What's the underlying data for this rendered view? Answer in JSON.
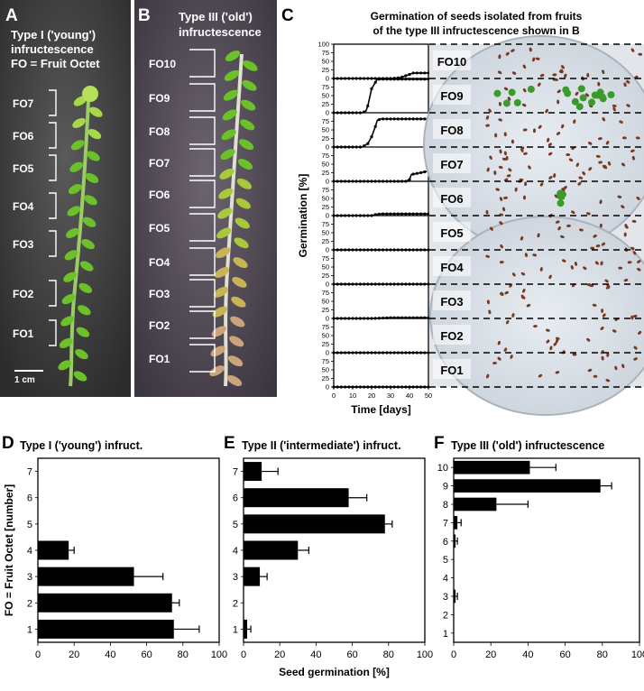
{
  "panels": {
    "A": {
      "letter": "A",
      "title_lines": [
        "Type I ('young')",
        "infructescence",
        "FO = Fruit Octet"
      ],
      "fo_labels": [
        "FO7",
        "FO6",
        "FO5",
        "FO4",
        "FO3",
        "FO2",
        "FO1"
      ],
      "scale_bar": "1 cm"
    },
    "B": {
      "letter": "B",
      "title_lines": [
        "Type III ('old')",
        "infructescence"
      ],
      "fo_labels": [
        "FO10",
        "FO9",
        "FO8",
        "FO7",
        "FO6",
        "FO5",
        "FO4",
        "FO3",
        "FO2",
        "FO1"
      ]
    },
    "C": {
      "letter": "C"
    },
    "D": {
      "letter": "D"
    },
    "E": {
      "letter": "E"
    },
    "F": {
      "letter": "F"
    }
  },
  "chart_data": [
    {
      "id": "C",
      "type": "line",
      "title": "Germination of seeds isolated from fruits of the type III infructescence shown in B",
      "title_lines": [
        "Germination of seeds isolated from fruits",
        "of the type III infructescence shown in B"
      ],
      "xlabel": "Time [days]",
      "ylabel": "Germination [%]",
      "xlim": [
        0,
        50
      ],
      "x_ticks": [
        "0",
        "10",
        "20",
        "30",
        "40",
        "50"
      ],
      "ylim_per_strip": [
        0,
        100
      ],
      "y_ticks_top": [
        "100",
        "75",
        "50",
        "25",
        "0"
      ],
      "y_ticks_strip": [
        "75",
        "50",
        "25",
        "0"
      ],
      "series": [
        {
          "name": "FO10",
          "x": [
            0,
            5,
            10,
            15,
            20,
            25,
            30,
            35,
            38,
            42,
            50
          ],
          "y": [
            0,
            0,
            0,
            0,
            0,
            0,
            0,
            2,
            8,
            16,
            16
          ]
        },
        {
          "name": "FO9",
          "x": [
            0,
            5,
            10,
            15,
            17,
            18,
            20,
            23,
            25,
            30,
            40,
            50
          ],
          "y": [
            0,
            0,
            0,
            0,
            5,
            20,
            70,
            98,
            98,
            98,
            98,
            98
          ]
        },
        {
          "name": "FO8",
          "x": [
            0,
            5,
            10,
            15,
            18,
            20,
            22,
            23,
            25,
            30,
            40,
            50
          ],
          "y": [
            0,
            0,
            0,
            0,
            10,
            30,
            60,
            78,
            82,
            82,
            82,
            82
          ]
        },
        {
          "name": "FO7",
          "x": [
            0,
            10,
            20,
            30,
            35,
            38,
            40,
            41,
            45,
            50
          ],
          "y": [
            0,
            0,
            0,
            0,
            0,
            0,
            5,
            20,
            24,
            30
          ]
        },
        {
          "name": "FO6",
          "x": [
            0,
            10,
            20,
            22,
            25,
            30,
            40,
            50
          ],
          "y": [
            0,
            0,
            0,
            3,
            5,
            5,
            5,
            5
          ]
        },
        {
          "name": "FO5",
          "x": [
            0,
            10,
            20,
            30,
            40,
            50
          ],
          "y": [
            0,
            0,
            0,
            0,
            0,
            0
          ]
        },
        {
          "name": "FO4",
          "x": [
            0,
            10,
            20,
            30,
            40,
            50
          ],
          "y": [
            0,
            0,
            0,
            0,
            0,
            0
          ]
        },
        {
          "name": "FO3",
          "x": [
            0,
            10,
            20,
            30,
            40,
            50
          ],
          "y": [
            0,
            0,
            0,
            2,
            2,
            2
          ]
        },
        {
          "name": "FO2",
          "x": [
            0,
            10,
            20,
            30,
            40,
            50
          ],
          "y": [
            0,
            0,
            0,
            0,
            0,
            0
          ]
        },
        {
          "name": "FO1",
          "x": [
            0,
            10,
            20,
            30,
            40,
            50
          ],
          "y": [
            0,
            0,
            0,
            0,
            0,
            0
          ]
        }
      ],
      "strip_labels": [
        "FO10",
        "FO9",
        "FO8",
        "FO7",
        "FO6",
        "FO5",
        "FO4",
        "FO3",
        "FO2",
        "FO1"
      ],
      "photo_strip_labels": [
        "FO10",
        "FO9",
        "FO8",
        "FO7",
        "FO6",
        "FO5",
        "FO4",
        "FO3",
        "FO2",
        "FO1"
      ]
    },
    {
      "id": "D",
      "type": "bar",
      "orientation": "horizontal",
      "title": "Type I ('young') infruct.",
      "ylabel": "FO = Fruit Octet [number]",
      "xlabel": "",
      "xlim": [
        0,
        100
      ],
      "x_ticks": [
        "0",
        "20",
        "40",
        "60",
        "80",
        "100"
      ],
      "categories": [
        "1",
        "2",
        "3",
        "4",
        "5",
        "6",
        "7"
      ],
      "values": [
        75,
        74,
        53,
        17,
        0,
        0,
        0
      ],
      "errors": [
        14,
        4,
        16,
        3,
        0,
        0,
        0
      ]
    },
    {
      "id": "E",
      "type": "bar",
      "orientation": "horizontal",
      "title": "Type II ('intermediate') infruct.",
      "xlabel": "Seed germination [%]",
      "xlim": [
        0,
        100
      ],
      "x_ticks": [
        "0",
        "20",
        "40",
        "60",
        "80",
        "100"
      ],
      "categories": [
        "1",
        "2",
        "3",
        "4",
        "5",
        "6",
        "7"
      ],
      "values": [
        2,
        0,
        9,
        30,
        78,
        58,
        10
      ],
      "errors": [
        2,
        0,
        4,
        6,
        4,
        10,
        9
      ]
    },
    {
      "id": "F",
      "type": "bar",
      "orientation": "horizontal",
      "title": "Type III ('old') infructescence",
      "xlabel": "",
      "xlim": [
        0,
        100
      ],
      "x_ticks": [
        "0",
        "20",
        "40",
        "60",
        "80",
        "100"
      ],
      "categories": [
        "1",
        "2",
        "3",
        "4",
        "5",
        "6",
        "7",
        "8",
        "9",
        "10"
      ],
      "values": [
        0,
        0,
        1,
        0,
        0,
        1,
        2,
        23,
        79,
        41
      ],
      "errors": [
        0,
        0,
        1,
        0,
        0,
        1,
        2,
        17,
        6,
        14
      ]
    }
  ]
}
